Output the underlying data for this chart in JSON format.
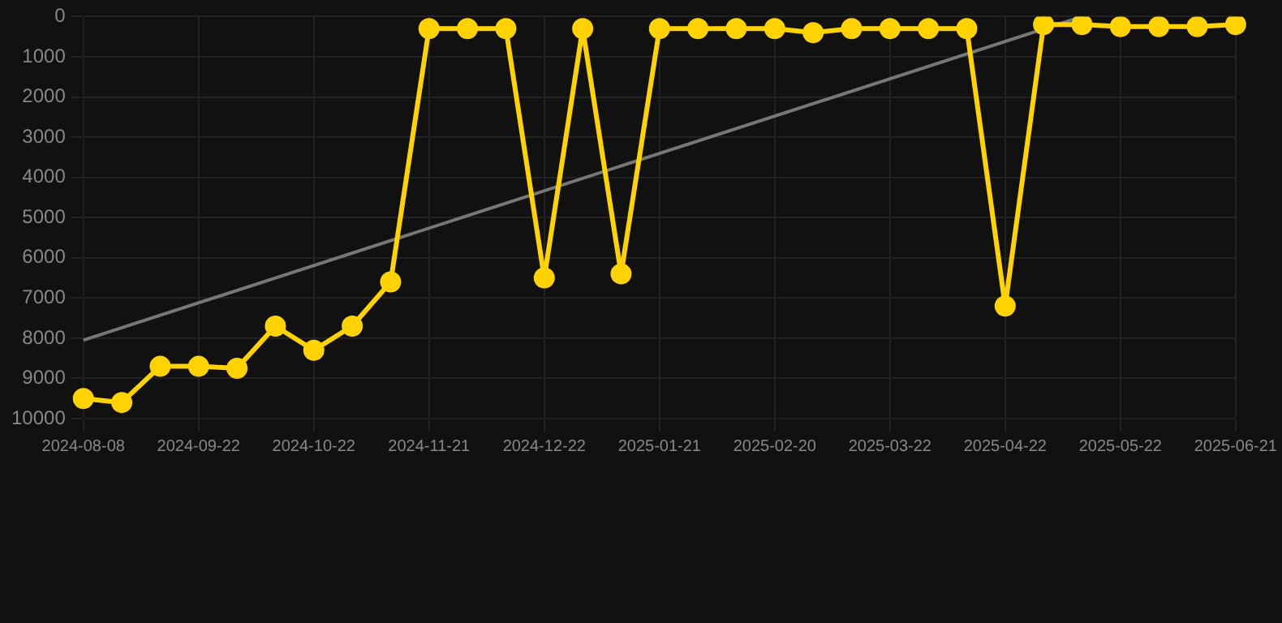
{
  "chart_data": {
    "type": "line",
    "categories": [
      "2024-08-08",
      null,
      null,
      "2024-09-22",
      null,
      null,
      "2024-10-22",
      null,
      null,
      "2024-11-21",
      null,
      null,
      "2024-12-22",
      null,
      null,
      "2025-01-21",
      null,
      null,
      "2025-02-20",
      null,
      null,
      "2025-03-22",
      null,
      null,
      "2025-04-22",
      null,
      null,
      "2025-05-22",
      null,
      null,
      "2025-06-21"
    ],
    "series": [
      {
        "color": "#ffd200",
        "values": [
          9500,
          9600,
          8700,
          8700,
          8750,
          7700,
          8300,
          7700,
          6600,
          300,
          300,
          300,
          6500,
          300,
          6400,
          300,
          300,
          300,
          300,
          400,
          300,
          300,
          300,
          300,
          7200,
          200,
          200,
          250,
          250,
          250,
          200
        ],
        "marker": "circle"
      },
      {
        "type": "line",
        "color": "#777777",
        "marker": "none",
        "values": [
          8050,
          null,
          null,
          null,
          null,
          null,
          null,
          null,
          null,
          null,
          null,
          null,
          null,
          null,
          null,
          null,
          null,
          null,
          null,
          null,
          null,
          null,
          null,
          null,
          null,
          null,
          0,
          null,
          null,
          null,
          null
        ]
      }
    ],
    "ylim": [
      10000,
      0
    ],
    "yticks": [
      0,
      1000,
      2000,
      3000,
      4000,
      5000,
      6000,
      7000,
      8000,
      9000,
      10000
    ],
    "grid": true,
    "legend": false
  }
}
